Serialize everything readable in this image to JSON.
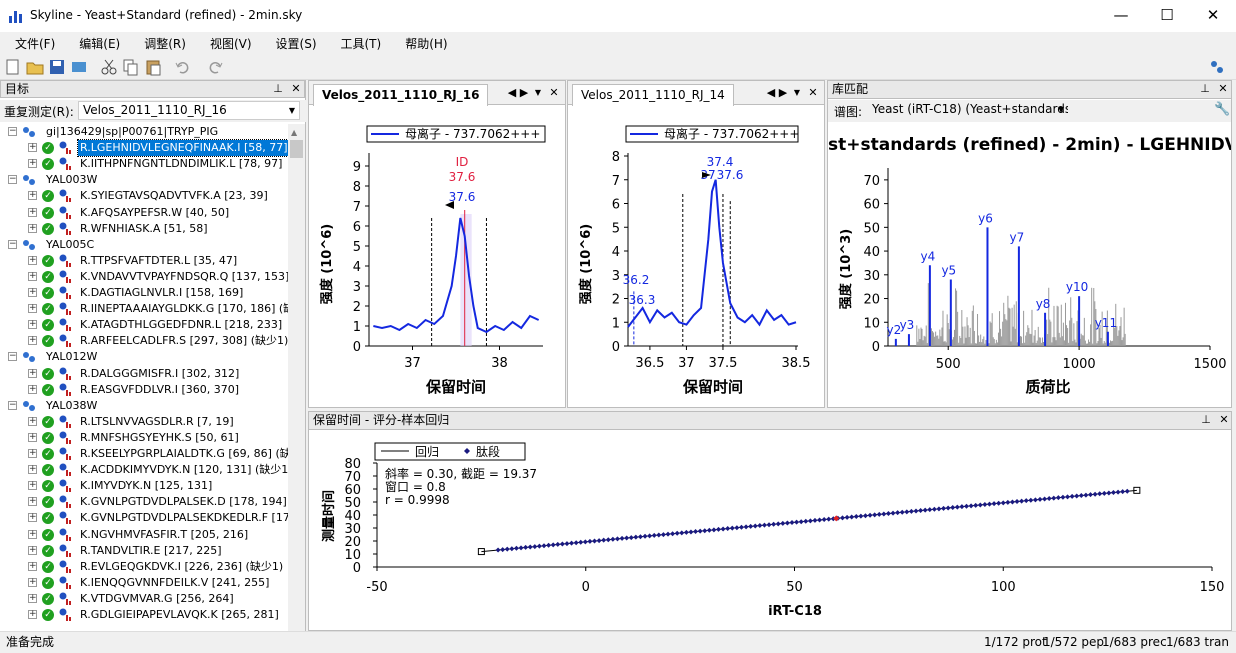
{
  "window": {
    "title": "Skyline - Yeast+Standard (refined) - 2min.sky",
    "minimize_glyph": "—",
    "maximize_glyph": "☐",
    "close_glyph": "✕"
  },
  "menu": [
    "文件(F)",
    "编辑(E)",
    "调整(R)",
    "视图(V)",
    "设置(S)",
    "工具(T)",
    "帮助(H)"
  ],
  "targets_panel": {
    "title": "目标",
    "replicate_label": "重复测定(R):",
    "replicate_value": "Velos_2011_1110_RJ_16",
    "rows": [
      {
        "type": "protein",
        "text": "gi|136429|sp|P00761|TRYP_PIG"
      },
      {
        "type": "peptide",
        "text": "R.LGEHNIDVLEGNEQFINAAK.I [58, 77]",
        "selected": true
      },
      {
        "type": "peptide",
        "text": "K.IITHPNFNGNTLDNDIMLIK.L [78, 97]"
      },
      {
        "type": "protein",
        "text": "YAL003W"
      },
      {
        "type": "peptide",
        "text": "K.SYIEGTAVSQADVTVFK.A [23, 39]"
      },
      {
        "type": "peptide",
        "text": "K.AFQSAYPEFSR.W [40, 50]"
      },
      {
        "type": "peptide",
        "text": "R.WFNHIASK.A [51, 58]"
      },
      {
        "type": "protein",
        "text": "YAL005C"
      },
      {
        "type": "peptide",
        "text": "R.TTPSFVAFTDTER.L [35, 47]"
      },
      {
        "type": "peptide",
        "text": "K.VNDAVVTVPAYFNDSQR.Q [137, 153]"
      },
      {
        "type": "peptide",
        "text": "K.DAGTIAGLNVLR.I [158, 169]"
      },
      {
        "type": "peptide",
        "text": "R.IINEPTAAAIAYGLDKK.G [170, 186] (缺少"
      },
      {
        "type": "peptide",
        "text": "K.ATAGDTHLGGEDFDNR.L [218, 233]"
      },
      {
        "type": "peptide",
        "text": "R.ARFEELCADLFR.S [297, 308] (缺少1)"
      },
      {
        "type": "protein",
        "text": "YAL012W"
      },
      {
        "type": "peptide",
        "text": "R.DALGGGMISFR.I [302, 312]"
      },
      {
        "type": "peptide",
        "text": "R.EASGVFDDLVR.I [360, 370]"
      },
      {
        "type": "protein",
        "text": "YAL038W"
      },
      {
        "type": "peptide",
        "text": "R.LTSLNVVAGSDLR.R [7, 19]"
      },
      {
        "type": "peptide",
        "text": "R.MNFSHGSYEYHK.S [50, 61]"
      },
      {
        "type": "peptide",
        "text": "R.KSEELYPGRPLAIALDTK.G [69, 86] (缺少"
      },
      {
        "type": "peptide",
        "text": "K.ACDDKIMYVDYK.N [120, 131] (缺少1)"
      },
      {
        "type": "peptide",
        "text": "K.IMYVDYK.N [125, 131]"
      },
      {
        "type": "peptide",
        "text": "K.GVNLPGTDVDLPALSEK.D [178, 194]"
      },
      {
        "type": "peptide",
        "text": "K.GVNLPGTDVDLPALSEKDKEDLR.F [178"
      },
      {
        "type": "peptide",
        "text": "K.NGVHMVFASFIR.T [205, 216]"
      },
      {
        "type": "peptide",
        "text": "R.TANDVLTIR.E [217, 225]"
      },
      {
        "type": "peptide",
        "text": "R.EVLGEQGKDVK.I [226, 236] (缺少1)"
      },
      {
        "type": "peptide",
        "text": "K.IENQQGVNNFDEILK.V [241, 255]"
      },
      {
        "type": "peptide",
        "text": "K.VTDGVMVAR.G [256, 264]"
      },
      {
        "type": "peptide",
        "text": "R.GDLGIEIPAPEVLAVQK.K [265, 281]"
      }
    ]
  },
  "chrom1": {
    "tab": "Velos_2011_1110_RJ_16",
    "legend": "母离子 - 737.7062+++",
    "ylabel": "强度 (10^6)",
    "xlabel": "保留时间",
    "id_label": "ID",
    "id_value": "37.6",
    "peak_label": "37.6",
    "yticks": [
      "0",
      "1",
      "2",
      "3",
      "4",
      "5",
      "6",
      "7",
      "8",
      "9"
    ],
    "xticks": [
      "37",
      "38"
    ]
  },
  "chrom2": {
    "tab": "Velos_2011_1110_RJ_14",
    "legend": "母离子 - 737.7062+++",
    "ylabel": "强度 (10^6)",
    "xlabel": "保留时间",
    "peak_labels": [
      "37.4",
      "37",
      "37.6",
      "36.2",
      "36.3"
    ],
    "yticks": [
      "0",
      "1",
      "2",
      "3",
      "4",
      "5",
      "6",
      "7",
      "8"
    ],
    "xticks": [
      "36.5",
      "37",
      "37.5",
      "38.5"
    ]
  },
  "library": {
    "title": "库匹配",
    "spectrum_label": "谱图:",
    "spectrum_value": "Yeast (iRT-C18) (Yeast+standards",
    "chart_title": "st+standards (refined) - 2min) - LGEHNIDVLEG",
    "ylabel": "强度 (10^3)",
    "xlabel": "质荷比",
    "yticks": [
      "0",
      "10",
      "20",
      "30",
      "40",
      "50",
      "60",
      "70"
    ],
    "xticks": [
      "500",
      "1000",
      "1500"
    ],
    "ion_labels": [
      "y2",
      "y3",
      "y4",
      "y5",
      "y6",
      "y7",
      "y8",
      "y10",
      "y11"
    ]
  },
  "regression": {
    "title": "保留时间 - 评分-样本回归",
    "legend_line": "回归",
    "legend_points": "肽段",
    "slope_text": "斜率 = 0.30, 截距 = 19.37",
    "window_text": "窗口 = 0.8",
    "r_text": "r = 0.9998",
    "ylabel": "测量时间",
    "xlabel": "iRT-C18",
    "yticks": [
      "0",
      "10",
      "20",
      "30",
      "40",
      "50",
      "60",
      "70",
      "80"
    ],
    "xticks": [
      "-50",
      "0",
      "50",
      "100",
      "150"
    ]
  },
  "status": {
    "left": "准备完成",
    "prot": "1/172 prot",
    "pep": "1/572 pep",
    "prec": "1/683 prec",
    "tran": "1/683 tran"
  },
  "chart_data": [
    {
      "type": "line",
      "title": "",
      "legend": [
        "母离子 - 737.7062+++"
      ],
      "xlabel": "保留时间",
      "ylabel": "强度 (10^6)",
      "xlim": [
        36.5,
        38.5
      ],
      "ylim": [
        0,
        9
      ],
      "series": [
        {
          "name": "母离子 - 737.7062+++",
          "x": [
            36.55,
            36.65,
            36.75,
            36.85,
            36.95,
            37.05,
            37.15,
            37.25,
            37.35,
            37.45,
            37.5,
            37.55,
            37.6,
            37.65,
            37.7,
            37.75,
            37.85,
            37.95,
            38.05,
            38.15,
            38.25,
            38.35,
            38.45
          ],
          "y": [
            1.0,
            0.9,
            1.0,
            0.8,
            1.1,
            0.9,
            1.3,
            1.1,
            1.5,
            3.0,
            4.5,
            6.4,
            5.5,
            3.5,
            2.0,
            0.9,
            0.7,
            1.0,
            0.8,
            1.2,
            0.9,
            1.5,
            1.3
          ]
        }
      ]
    },
    {
      "type": "line",
      "title": "",
      "legend": [
        "母离子 - 737.7062+++"
      ],
      "xlabel": "保留时间",
      "ylabel": "强度 (10^6)",
      "xlim": [
        36.2,
        38.5
      ],
      "ylim": [
        0,
        8
      ],
      "series": [
        {
          "name": "母离子 - 737.7062+++",
          "x": [
            36.2,
            36.3,
            36.4,
            36.5,
            36.6,
            36.7,
            36.8,
            36.9,
            37.0,
            37.1,
            37.2,
            37.3,
            37.35,
            37.4,
            37.45,
            37.5,
            37.6,
            37.7,
            37.8,
            37.9,
            38.0,
            38.1,
            38.2,
            38.3,
            38.4,
            38.5
          ],
          "y": [
            0.8,
            1.2,
            1.6,
            1.0,
            1.5,
            1.2,
            1.4,
            1.0,
            0.9,
            1.3,
            1.6,
            4.5,
            6.5,
            7.0,
            5.0,
            3.5,
            1.8,
            1.2,
            1.0,
            1.3,
            0.9,
            1.5,
            1.1,
            1.3,
            0.9,
            1.0
          ]
        }
      ]
    },
    {
      "type": "bar",
      "title": "st+standards (refined) - 2min) - LGEHNIDVLEG",
      "xlabel": "质荷比",
      "ylabel": "强度 (10^3)",
      "xlim": [
        270,
        1500
      ],
      "ylim": [
        0,
        75
      ],
      "series": [
        {
          "name": "y ions",
          "x": [
            300,
            350,
            430,
            510,
            650,
            770,
            870,
            1000,
            1110
          ],
          "labels": [
            "y2",
            "y3",
            "y4",
            "y5",
            "y6",
            "y7",
            "y8",
            "y10",
            "y11"
          ],
          "y": [
            3,
            5,
            34,
            28,
            50,
            42,
            14,
            21,
            6
          ]
        }
      ]
    },
    {
      "type": "scatter",
      "title": "",
      "legend": [
        "回归",
        "肽段"
      ],
      "xlabel": "iRT-C18",
      "ylabel": "测量时间",
      "xlim": [
        -50,
        150
      ],
      "ylim": [
        0,
        80
      ],
      "regression": {
        "slope": 0.3,
        "intercept": 19.37,
        "window": 0.8,
        "r": 0.9998
      },
      "series": [
        {
          "name": "肽段",
          "x_range": [
            -25,
            132
          ],
          "highlight": {
            "x": 60,
            "y": 37.4
          }
        }
      ]
    }
  ]
}
